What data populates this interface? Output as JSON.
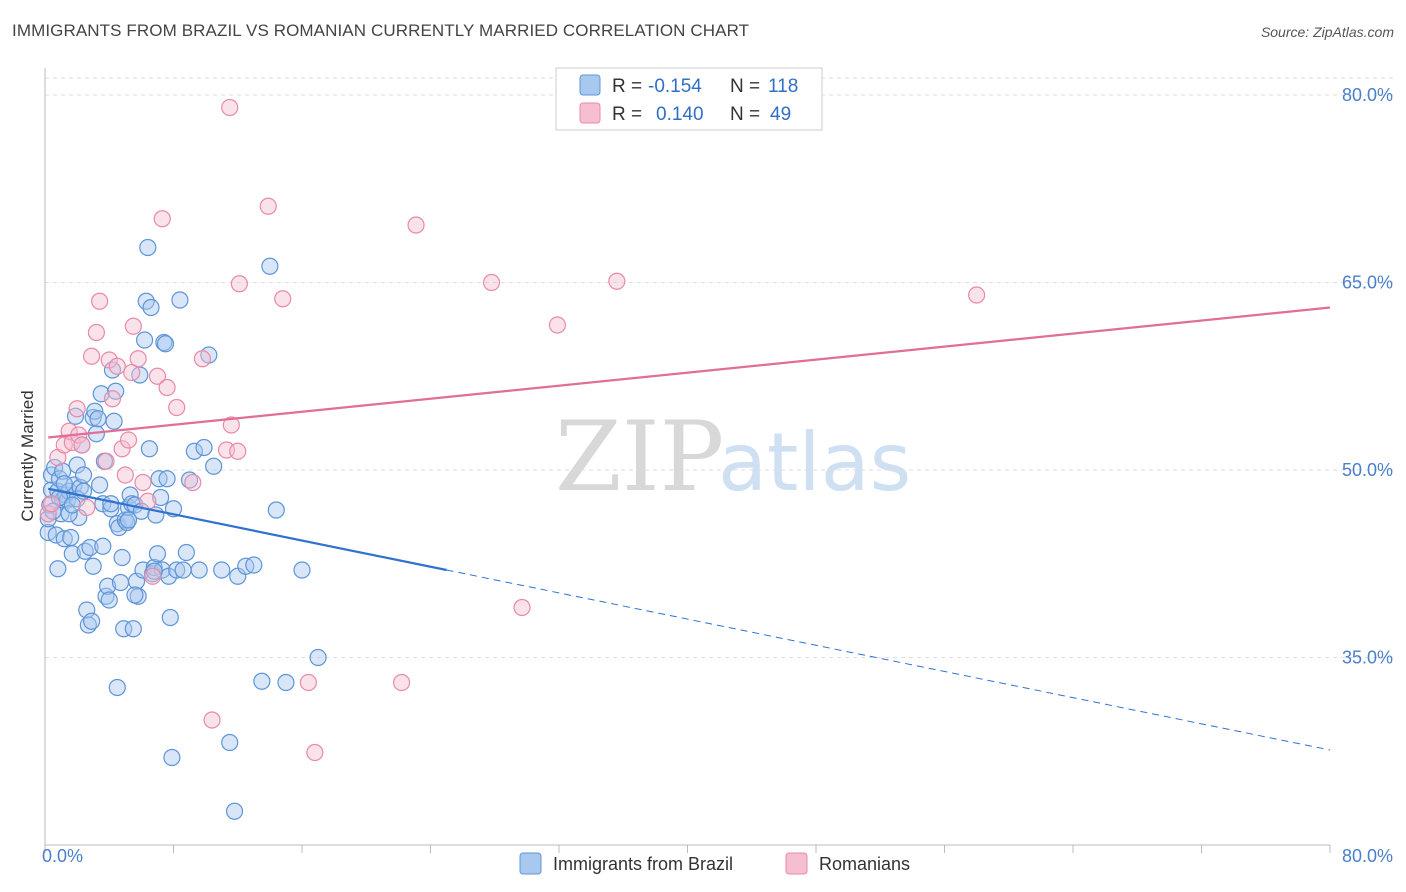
{
  "title": "IMMIGRANTS FROM BRAZIL VS ROMANIAN CURRENTLY MARRIED CORRELATION CHART",
  "source": "Source: ZipAtlas.com",
  "watermark": {
    "zip": "ZIP",
    "atlas": "atlas"
  },
  "colors": {
    "blue_fill": "#a9c8f0",
    "blue_stroke": "#5e95d8",
    "blue_line": "#2f72cf",
    "pink_fill": "#f5bfd0",
    "pink_stroke": "#e88aa8",
    "pink_line": "#e06e98",
    "grid": "#dddddd",
    "axis_label": "#4a7fc9"
  },
  "legend": {
    "rows": [
      {
        "r_label": "R =",
        "r_value": "-0.154",
        "n_label": "N =",
        "n_value": "118"
      },
      {
        "r_label": "R =",
        "r_value": "0.140",
        "n_label": "N =",
        "n_value": "49"
      }
    ]
  },
  "chart_data": {
    "type": "scatter",
    "ylabel": "Currently Married",
    "xlim": [
      0,
      80
    ],
    "ylim": [
      20,
      82
    ],
    "x_tick_labels": [
      "0.0%",
      "80.0%"
    ],
    "y_ticks": [
      35,
      50,
      65,
      80
    ],
    "y_tick_labels": [
      "35.0%",
      "50.0%",
      "65.0%",
      "80.0%"
    ],
    "grid": "horizontal dashed",
    "legend_position": "top-center",
    "series": [
      {
        "name": "Immigrants from Brazil",
        "color": "blue",
        "trend": {
          "x0": 0.2,
          "y0": 48.5,
          "x1": 25,
          "y1": 42.0,
          "dash_to_x": 80,
          "dash_to_y": 27.6
        },
        "points": [
          [
            0.2,
            45
          ],
          [
            0.2,
            46.1
          ],
          [
            0.3,
            47.2
          ],
          [
            0.4,
            48.4
          ],
          [
            0.4,
            49.6
          ],
          [
            0.6,
            50.2
          ],
          [
            0.7,
            44.8
          ],
          [
            0.8,
            42.1
          ],
          [
            0.8,
            48.3
          ],
          [
            0.9,
            49.3
          ],
          [
            1.0,
            46.5
          ],
          [
            1.1,
            47.6
          ],
          [
            1.1,
            49.9
          ],
          [
            1.2,
            44.5
          ],
          [
            1.3,
            48.0
          ],
          [
            1.4,
            47.6
          ],
          [
            1.5,
            48.3
          ],
          [
            1.6,
            44.6
          ],
          [
            1.7,
            43.3
          ],
          [
            1.8,
            48.8
          ],
          [
            1.9,
            54.3
          ],
          [
            2.0,
            50.4
          ],
          [
            2.1,
            46.2
          ],
          [
            2.2,
            48.6
          ],
          [
            2.3,
            52.0
          ],
          [
            2.4,
            49.6
          ],
          [
            2.5,
            43.5
          ],
          [
            2.6,
            38.8
          ],
          [
            2.7,
            37.6
          ],
          [
            2.8,
            43.8
          ],
          [
            2.9,
            37.9
          ],
          [
            3.0,
            54.2
          ],
          [
            3.1,
            54.7
          ],
          [
            3.2,
            52.9
          ],
          [
            3.3,
            54.1
          ],
          [
            3.4,
            48.8
          ],
          [
            3.5,
            56.1
          ],
          [
            3.6,
            47.3
          ],
          [
            3.7,
            50.7
          ],
          [
            3.8,
            39.9
          ],
          [
            3.9,
            40.7
          ],
          [
            4.0,
            39.6
          ],
          [
            4.1,
            46.9
          ],
          [
            4.2,
            58.0
          ],
          [
            4.3,
            53.9
          ],
          [
            4.4,
            56.3
          ],
          [
            4.5,
            45.7
          ],
          [
            4.6,
            45.4
          ],
          [
            4.7,
            41.0
          ],
          [
            4.8,
            43.0
          ],
          [
            4.9,
            37.3
          ],
          [
            5.0,
            46.0
          ],
          [
            5.1,
            45.8
          ],
          [
            5.2,
            47.0
          ],
          [
            5.3,
            48.0
          ],
          [
            5.4,
            47.3
          ],
          [
            5.5,
            37.3
          ],
          [
            5.6,
            47.2
          ],
          [
            5.7,
            41.1
          ],
          [
            5.8,
            39.9
          ],
          [
            5.9,
            57.6
          ],
          [
            6.0,
            46.7
          ],
          [
            6.1,
            42.0
          ],
          [
            6.2,
            60.4
          ],
          [
            6.3,
            63.5
          ],
          [
            6.4,
            67.8
          ],
          [
            6.5,
            51.7
          ],
          [
            6.6,
            63.0
          ],
          [
            6.7,
            41.7
          ],
          [
            6.8,
            42.2
          ],
          [
            6.9,
            46.4
          ],
          [
            7.0,
            43.3
          ],
          [
            7.1,
            49.3
          ],
          [
            7.2,
            47.8
          ],
          [
            7.3,
            42.0
          ],
          [
            7.4,
            60.2
          ],
          [
            7.5,
            60.1
          ],
          [
            7.6,
            49.3
          ],
          [
            7.7,
            41.5
          ],
          [
            7.8,
            38.2
          ],
          [
            8.0,
            46.9
          ],
          [
            8.2,
            42.0
          ],
          [
            8.4,
            63.6
          ],
          [
            8.6,
            42.0
          ],
          [
            8.8,
            43.4
          ],
          [
            9.0,
            49.2
          ],
          [
            9.3,
            51.5
          ],
          [
            9.6,
            42.0
          ],
          [
            9.9,
            51.8
          ],
          [
            10.2,
            59.2
          ],
          [
            10.5,
            50.3
          ],
          [
            11.0,
            42.0
          ],
          [
            11.5,
            28.2
          ],
          [
            12.0,
            41.5
          ],
          [
            12.5,
            42.3
          ],
          [
            13.0,
            42.4
          ],
          [
            13.5,
            33.1
          ],
          [
            14.0,
            66.3
          ],
          [
            14.4,
            46.8
          ],
          [
            15.0,
            33.0
          ],
          [
            16.0,
            42.0
          ],
          [
            17.0,
            35.0
          ],
          [
            11.8,
            22.7
          ],
          [
            7.9,
            27.0
          ],
          [
            4.5,
            32.6
          ],
          [
            3.0,
            42.3
          ],
          [
            2.0,
            47.7
          ],
          [
            1.5,
            46.5
          ],
          [
            0.9,
            47.8
          ],
          [
            1.2,
            48.9
          ],
          [
            5.2,
            46.0
          ],
          [
            4.1,
            47.3
          ],
          [
            3.6,
            43.9
          ],
          [
            2.4,
            48.3
          ],
          [
            6.8,
            41.9
          ],
          [
            5.6,
            40.0
          ],
          [
            0.5,
            46.7
          ],
          [
            1.7,
            47.2
          ]
        ]
      },
      {
        "name": "Romanians",
        "color": "pink",
        "trend": {
          "x0": 0.2,
          "y0": 52.6,
          "x1": 80,
          "y1": 63.0
        },
        "points": [
          [
            0.2,
            46.5
          ],
          [
            0.4,
            47.3
          ],
          [
            0.8,
            51.0
          ],
          [
            1.2,
            52.0
          ],
          [
            1.5,
            53.1
          ],
          [
            1.7,
            52.2
          ],
          [
            2.0,
            54.9
          ],
          [
            2.1,
            52.8
          ],
          [
            2.3,
            52.0
          ],
          [
            2.6,
            47.0
          ],
          [
            2.9,
            59.1
          ],
          [
            3.2,
            61.0
          ],
          [
            3.4,
            63.5
          ],
          [
            3.8,
            50.7
          ],
          [
            4.0,
            58.8
          ],
          [
            4.2,
            55.7
          ],
          [
            4.5,
            58.3
          ],
          [
            4.8,
            51.7
          ],
          [
            5.0,
            49.6
          ],
          [
            5.2,
            52.4
          ],
          [
            5.4,
            57.8
          ],
          [
            5.5,
            61.5
          ],
          [
            5.8,
            58.9
          ],
          [
            6.1,
            49.0
          ],
          [
            6.4,
            47.5
          ],
          [
            6.7,
            41.5
          ],
          [
            7.0,
            57.5
          ],
          [
            7.3,
            70.1
          ],
          [
            7.6,
            56.6
          ],
          [
            8.2,
            55.0
          ],
          [
            9.2,
            49.0
          ],
          [
            9.8,
            58.9
          ],
          [
            10.4,
            30.0
          ],
          [
            11.3,
            51.6
          ],
          [
            11.6,
            53.6
          ],
          [
            12.1,
            64.9
          ],
          [
            13.9,
            71.1
          ],
          [
            14.8,
            63.7
          ],
          [
            16.4,
            33.0
          ],
          [
            16.8,
            27.4
          ],
          [
            22.2,
            33.0
          ],
          [
            23.1,
            69.6
          ],
          [
            27.8,
            65.0
          ],
          [
            29.7,
            39.0
          ],
          [
            31.9,
            61.6
          ],
          [
            35.6,
            65.1
          ],
          [
            58.0,
            64.0
          ],
          [
            11.5,
            79.0
          ],
          [
            12.0,
            51.5
          ]
        ]
      }
    ]
  }
}
